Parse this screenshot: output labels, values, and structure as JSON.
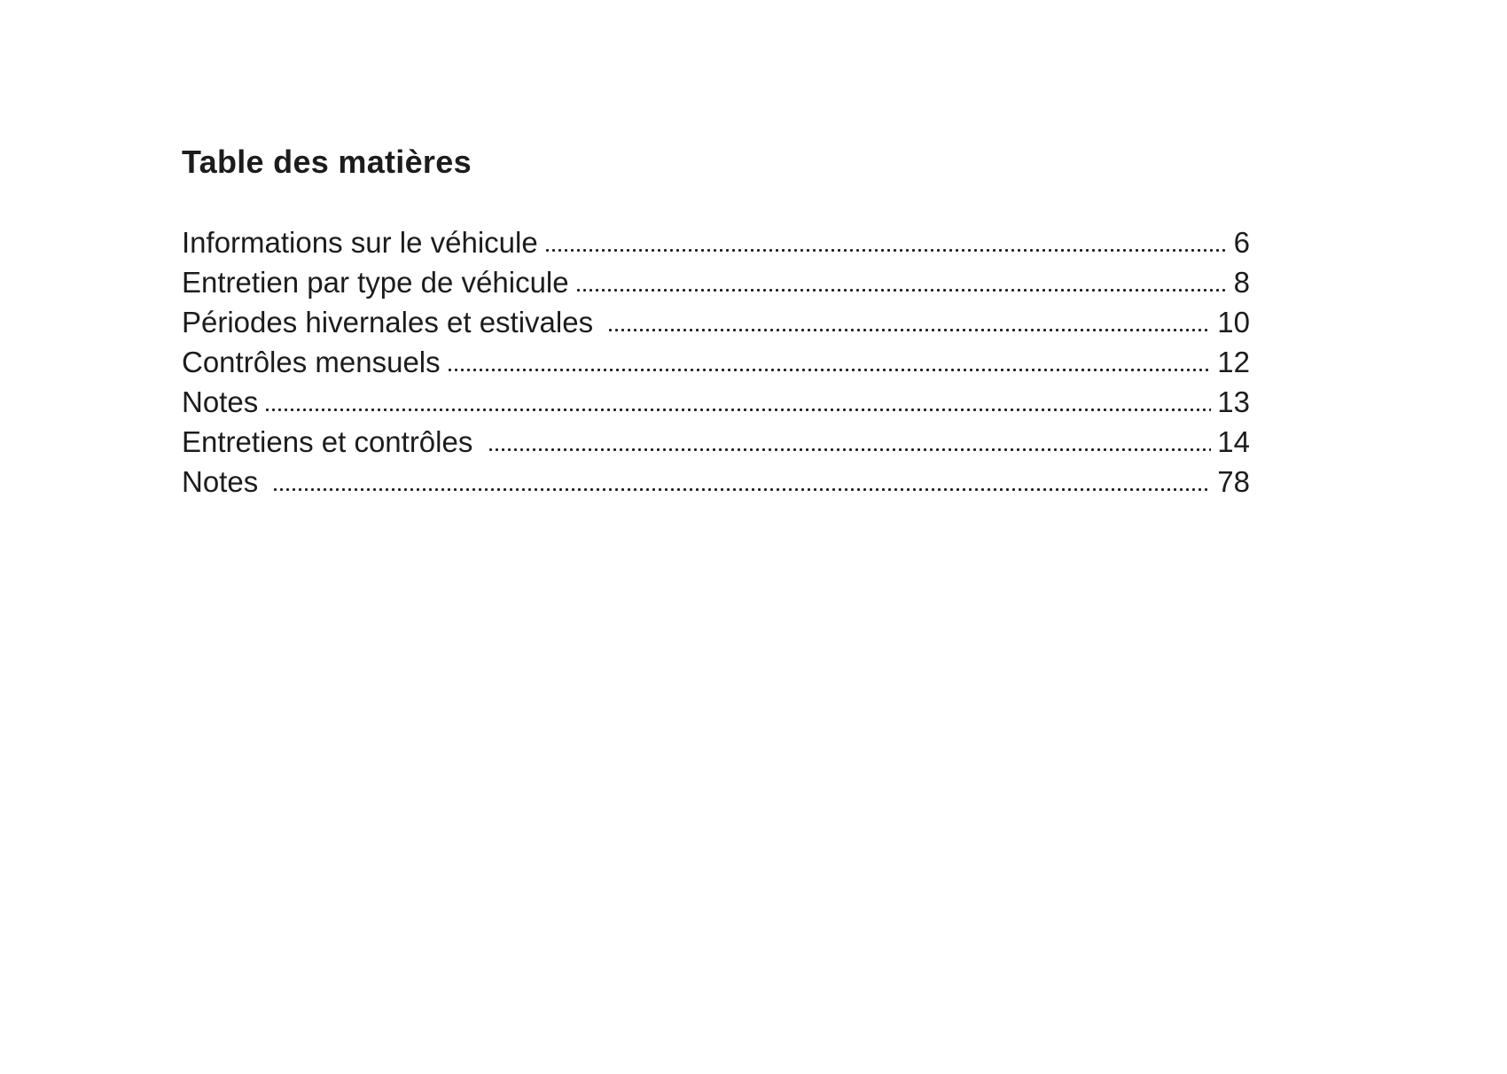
{
  "page": {
    "title": "Table des matières",
    "background_color": "#ffffff",
    "text_color": "#1c1c1c"
  },
  "toc": {
    "entries": [
      {
        "label": "Informations sur le véhicule",
        "page": "6"
      },
      {
        "label": "Entretien par type de véhicule",
        "page": "8"
      },
      {
        "label": "Périodes hivernales et estivales ",
        "page": "10"
      },
      {
        "label": "Contrôles mensuels",
        "page": "12"
      },
      {
        "label": "Notes",
        "page": "13"
      },
      {
        "label": "Entretiens et contrôles ",
        "page": "14"
      },
      {
        "label": "Notes ",
        "page": "78"
      }
    ]
  }
}
